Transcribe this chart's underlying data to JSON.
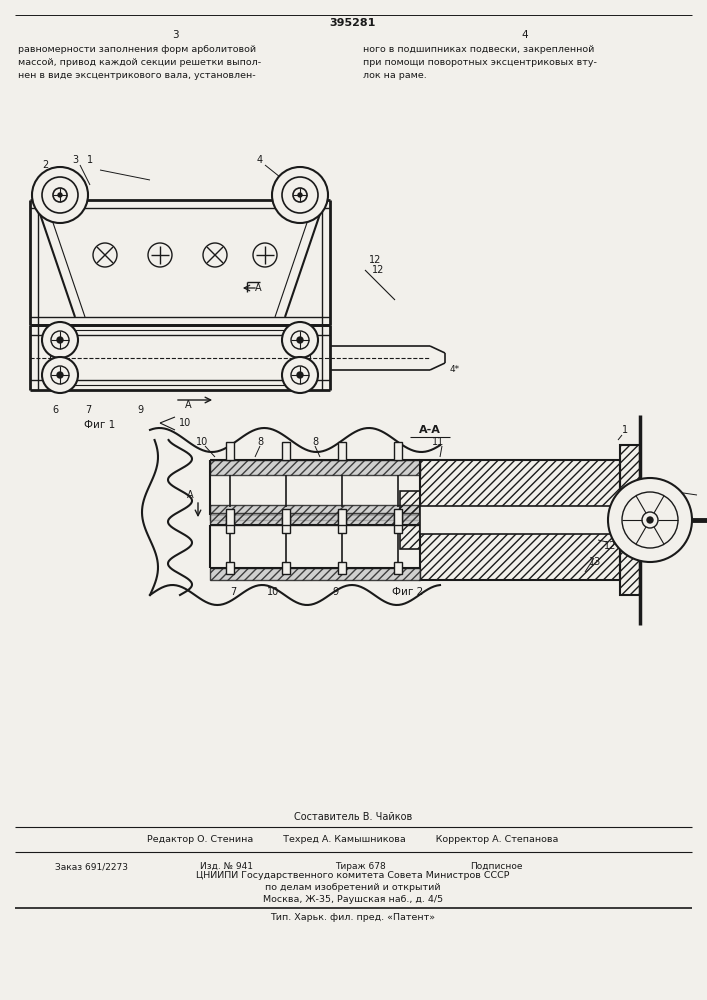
{
  "patent_number": "395281",
  "page_left": "3",
  "page_right": "4",
  "text_left": "равномерности заполнения форм арболитовой\nмассой, привод каждой секции решетки выпол-\nнен в виде эксцентрикового вала, установлен-",
  "text_right": "ного в подшипниках подвески, закрепленной\nпри помощи поворотных эксцентриковых вту-\nлок на раме.",
  "fig1_label": "Фиг 1",
  "fig2_label": "Фиг 2",
  "section_label": "А-А",
  "editor_line": "Редактор О. Стенина          Техред А. Камышникова          Корректор А. Степанова",
  "order_line1": "Заказ 691/2273",
  "order_line2": "Изд. № 941",
  "order_line3": "Тираж 678",
  "order_line4": "Подписное",
  "institute_line": "ЦНИИПИ Государственного комитета Совета Министров СССР",
  "institute_line2": "по делам изобретений и открытий",
  "institute_line3": "Москва, Ж-35, Раушская наб., д. 4/5",
  "print_line": "Тип. Харьк. фил. пред. «Патент»",
  "composer_line": "Составитель В. Чайков",
  "bg_color": "#f2f0eb",
  "line_color": "#1a1a1a"
}
